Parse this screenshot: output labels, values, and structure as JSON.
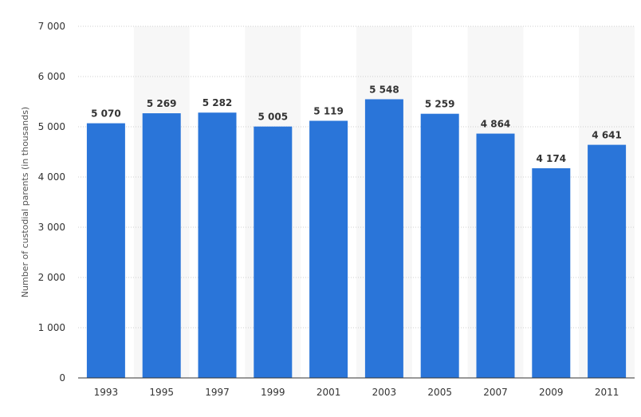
{
  "chart_data": {
    "type": "bar",
    "categories": [
      "1993",
      "1995",
      "1997",
      "1999",
      "2001",
      "2003",
      "2005",
      "2007",
      "2009",
      "2011"
    ],
    "values": [
      5070,
      5269,
      5282,
      5005,
      5119,
      5548,
      5259,
      4864,
      4174,
      4641
    ],
    "value_labels": [
      "5 070",
      "5 269",
      "5 282",
      "5 005",
      "5 119",
      "5 548",
      "5 259",
      "4 864",
      "4 174",
      "4 641"
    ],
    "ylabel": "Number of custodial parents (in thousands)",
    "ylim": [
      0,
      7000
    ],
    "yticks": [
      0,
      1000,
      2000,
      3000,
      4000,
      5000,
      6000,
      7000
    ],
    "ytick_labels": [
      "0",
      "1 000",
      "2 000",
      "3 000",
      "4 000",
      "5 000",
      "6 000",
      "7 000"
    ],
    "grid": true,
    "bar_color": "#2a75d9",
    "band_color": "#f7f7f7"
  }
}
